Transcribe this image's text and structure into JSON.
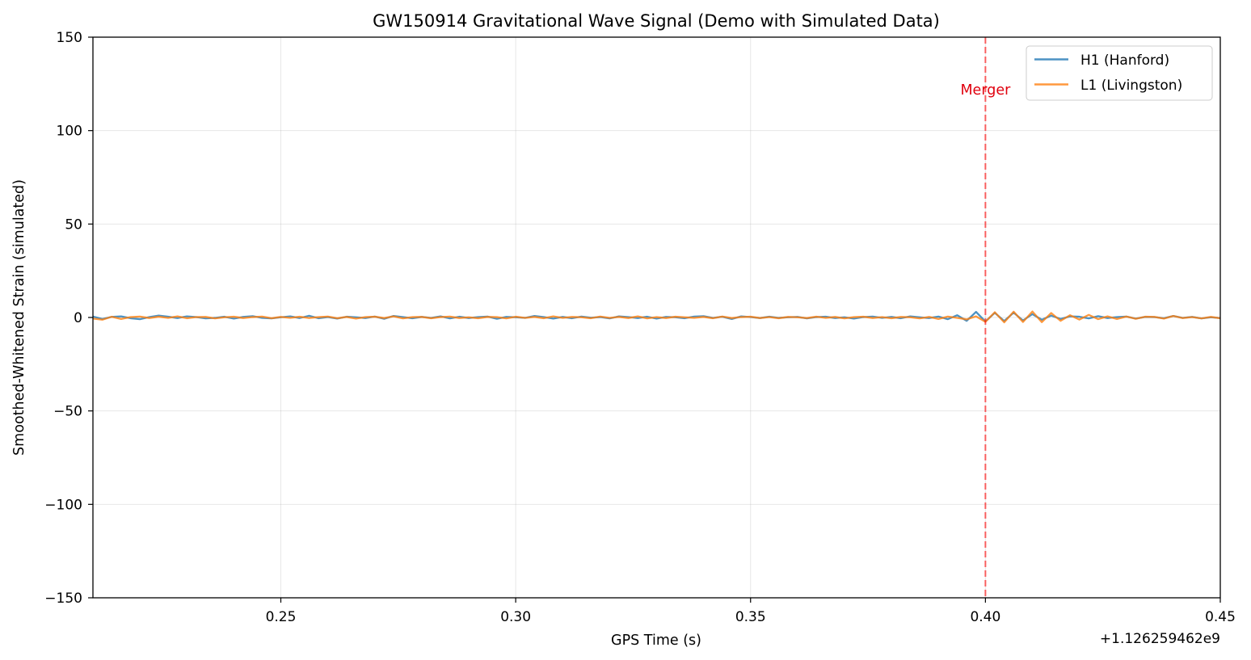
{
  "chart_data": {
    "type": "line",
    "title": "GW150914 Gravitational Wave Signal (Demo with Simulated Data)",
    "xlabel": "GPS Time (s)",
    "ylabel": "Smoothed-Whitened Strain (simulated)",
    "x_offset_label": "+1.126259462e9",
    "xlim": [
      0.21,
      0.45
    ],
    "ylim": [
      -150,
      150
    ],
    "xticks": [
      0.25,
      0.3,
      0.35,
      0.4,
      0.45
    ],
    "xtick_labels": [
      "0.25",
      "0.30",
      "0.35",
      "0.40",
      "0.45"
    ],
    "yticks": [
      -150,
      -100,
      -50,
      0,
      50,
      100,
      150
    ],
    "ytick_labels": [
      "−150",
      "−100",
      "−50",
      "0",
      "50",
      "100",
      "150"
    ],
    "grid": true,
    "legend_position": "top-right",
    "series": [
      {
        "name": "H1 (Hanford)",
        "color": "#1f77b4",
        "x": [
          0.21,
          0.212,
          0.214,
          0.216,
          0.218,
          0.22,
          0.222,
          0.224,
          0.226,
          0.228,
          0.23,
          0.232,
          0.234,
          0.236,
          0.238,
          0.24,
          0.242,
          0.244,
          0.246,
          0.248,
          0.25,
          0.252,
          0.254,
          0.256,
          0.258,
          0.26,
          0.262,
          0.264,
          0.266,
          0.268,
          0.27,
          0.272,
          0.274,
          0.276,
          0.278,
          0.28,
          0.282,
          0.284,
          0.286,
          0.288,
          0.29,
          0.292,
          0.294,
          0.296,
          0.298,
          0.3,
          0.302,
          0.304,
          0.306,
          0.308,
          0.31,
          0.312,
          0.314,
          0.316,
          0.318,
          0.32,
          0.322,
          0.324,
          0.326,
          0.328,
          0.33,
          0.332,
          0.334,
          0.336,
          0.338,
          0.34,
          0.342,
          0.344,
          0.346,
          0.348,
          0.35,
          0.352,
          0.354,
          0.356,
          0.358,
          0.36,
          0.362,
          0.364,
          0.366,
          0.368,
          0.37,
          0.372,
          0.374,
          0.376,
          0.378,
          0.38,
          0.382,
          0.384,
          0.386,
          0.388,
          0.39,
          0.392,
          0.394,
          0.396,
          0.398,
          0.4,
          0.402,
          0.404,
          0.406,
          0.408,
          0.41,
          0.412,
          0.414,
          0.416,
          0.418,
          0.42,
          0.422,
          0.424,
          0.426,
          0.428,
          0.43,
          0.432,
          0.434,
          0.436,
          0.438,
          0.44,
          0.442,
          0.444,
          0.446,
          0.448,
          0.45
        ],
        "y": [
          0.5,
          -0.8,
          0.3,
          0.6,
          -0.4,
          -0.9,
          0.2,
          1.0,
          0.4,
          -0.3,
          0.6,
          0.2,
          -0.5,
          -0.2,
          0.4,
          -0.6,
          0.3,
          0.7,
          -0.2,
          -0.5,
          0.1,
          0.6,
          -0.3,
          0.9,
          -0.4,
          0.2,
          -0.6,
          0.4,
          0.1,
          -0.3,
          0.5,
          -0.7,
          0.8,
          0.2,
          -0.4,
          0.3,
          -0.2,
          0.6,
          -0.5,
          0.4,
          -0.3,
          0.2,
          0.5,
          -0.7,
          0.3,
          0.1,
          -0.2,
          0.8,
          0.2,
          -0.6,
          0.3,
          -0.4,
          0.5,
          -0.1,
          0.2,
          -0.5,
          0.6,
          0.2,
          -0.3,
          0.4,
          -0.6,
          0.3,
          0.1,
          -0.4,
          0.5,
          0.7,
          -0.2,
          0.4,
          -0.8,
          0.6,
          0.2,
          -0.3,
          0.4,
          -0.2,
          0.1,
          0.3,
          -0.5,
          0.2,
          0.4,
          -0.3,
          0.1,
          -0.6,
          0.2,
          0.5,
          -0.2,
          0.3,
          -0.4,
          0.6,
          0.1,
          -0.3,
          0.5,
          -0.9,
          1.2,
          -1.8,
          3.0,
          -2.2,
          2.5,
          -1.9,
          2.6,
          -1.6,
          1.8,
          -1.2,
          1.0,
          -0.8,
          0.6,
          0.4,
          -0.5,
          0.7,
          -0.3,
          0.2,
          0.5,
          -0.6,
          0.3,
          0.2,
          -0.4,
          0.8,
          -0.2,
          0.3,
          -0.5,
          0.1,
          -0.3
        ],
        "legend_label": "H1 (Hanford)"
      },
      {
        "name": "L1 (Livingston)",
        "color": "#ff7f0e",
        "x": [
          0.21,
          0.212,
          0.214,
          0.216,
          0.218,
          0.22,
          0.222,
          0.224,
          0.226,
          0.228,
          0.23,
          0.232,
          0.234,
          0.236,
          0.238,
          0.24,
          0.242,
          0.244,
          0.246,
          0.248,
          0.25,
          0.252,
          0.254,
          0.256,
          0.258,
          0.26,
          0.262,
          0.264,
          0.266,
          0.268,
          0.27,
          0.272,
          0.274,
          0.276,
          0.278,
          0.28,
          0.282,
          0.284,
          0.286,
          0.288,
          0.29,
          0.292,
          0.294,
          0.296,
          0.298,
          0.3,
          0.302,
          0.304,
          0.306,
          0.308,
          0.31,
          0.312,
          0.314,
          0.316,
          0.318,
          0.32,
          0.322,
          0.324,
          0.326,
          0.328,
          0.33,
          0.332,
          0.334,
          0.336,
          0.338,
          0.34,
          0.342,
          0.344,
          0.346,
          0.348,
          0.35,
          0.352,
          0.354,
          0.356,
          0.358,
          0.36,
          0.362,
          0.364,
          0.366,
          0.368,
          0.37,
          0.372,
          0.374,
          0.376,
          0.378,
          0.38,
          0.382,
          0.384,
          0.386,
          0.388,
          0.39,
          0.392,
          0.394,
          0.396,
          0.398,
          0.4,
          0.402,
          0.404,
          0.406,
          0.408,
          0.41,
          0.412,
          0.414,
          0.416,
          0.418,
          0.42,
          0.422,
          0.424,
          0.426,
          0.428,
          0.43,
          0.432,
          0.434,
          0.436,
          0.438,
          0.44,
          0.442,
          0.444,
          0.446,
          0.448,
          0.45
        ],
        "y": [
          -0.6,
          -1.2,
          0.4,
          -0.8,
          0.2,
          0.5,
          -0.3,
          0.4,
          -0.2,
          0.6,
          -0.4,
          0.2,
          0.3,
          -0.5,
          0.1,
          0.4,
          -0.3,
          0.2,
          0.5,
          -0.4,
          0.3,
          -0.2,
          0.4,
          -0.3,
          0.2,
          0.5,
          -0.4,
          0.3,
          -0.6,
          0.2,
          0.4,
          -0.3,
          0.6,
          -0.5,
          0.2,
          0.3,
          -0.4,
          0.2,
          0.5,
          -0.3,
          0.1,
          -0.4,
          0.3,
          0.2,
          -0.5,
          0.4,
          -0.2,
          0.3,
          -0.4,
          0.6,
          -0.2,
          0.3,
          0.1,
          -0.4,
          0.5,
          -0.2,
          0.3,
          -0.3,
          0.6,
          -0.5,
          0.2,
          -0.3,
          0.4,
          0.1,
          -0.2,
          0.3,
          -0.4,
          0.5,
          -0.3,
          0.2,
          0.4,
          -0.3,
          0.2,
          -0.4,
          0.3,
          0.1,
          -0.3,
          0.4,
          -0.2,
          0.3,
          -0.5,
          0.2,
          0.4,
          -0.3,
          0.2,
          -0.4,
          0.3,
          0.1,
          -0.5,
          0.3,
          -0.8,
          0.5,
          -0.2,
          -1.0,
          0.6,
          -2.3,
          2.8,
          -2.6,
          3.1,
          -2.4,
          3.2,
          -2.5,
          2.4,
          -1.8,
          1.2,
          -1.1,
          1.4,
          -0.9,
          0.6,
          -0.8,
          0.5,
          -0.7,
          0.4,
          0.3,
          -0.6,
          0.8,
          -0.3,
          0.2,
          -0.5,
          0.3,
          -0.4
        ],
        "legend_label": "L1 (Livingston)"
      }
    ],
    "annotations": [
      {
        "type": "vline",
        "x": 0.4,
        "color": "#ff0000",
        "style": "dashed"
      },
      {
        "type": "text",
        "text": "Merger",
        "x": 0.4,
        "y": 122,
        "color": "#e0000e"
      }
    ]
  }
}
